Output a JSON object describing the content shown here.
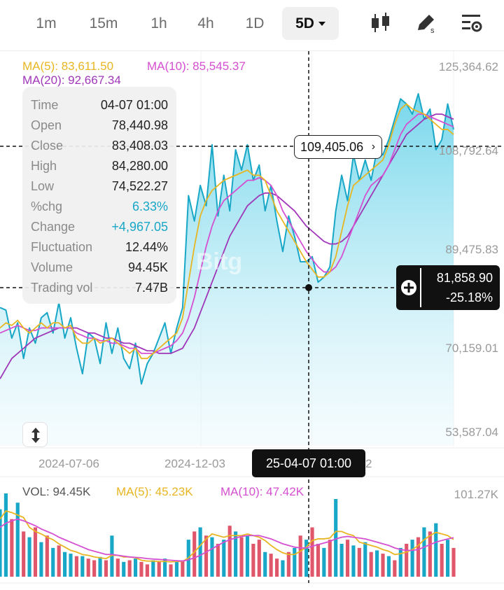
{
  "timeframes": [
    {
      "label": "1m",
      "active": false
    },
    {
      "label": "15m",
      "active": false
    },
    {
      "label": "1h",
      "active": false
    },
    {
      "label": "4h",
      "active": false
    },
    {
      "label": "1D",
      "active": false
    },
    {
      "label": "5D",
      "active": true
    }
  ],
  "toolbar_icons": [
    "candlestick-icon",
    "draw-tool-icon",
    "chart-settings-icon"
  ],
  "legend": {
    "ma5": "MA(5): 83,611.50",
    "ma10": "MA(10): 85,545.37",
    "ma20": "MA(20): 92,667.34"
  },
  "info": [
    {
      "k": "Time",
      "v": "04-07 01:00"
    },
    {
      "k": "Open",
      "v": "78,440.98"
    },
    {
      "k": "Close",
      "v": "83,408.03"
    },
    {
      "k": "High",
      "v": "84,280.00"
    },
    {
      "k": "Low",
      "v": "74,522.27"
    },
    {
      "k": "%chg",
      "v": "6.33%"
    },
    {
      "k": "Change",
      "v": "+4,967.05"
    },
    {
      "k": "Fluctuation",
      "v": "12.44%"
    },
    {
      "k": "Volume",
      "v": "94.45K"
    },
    {
      "k": "Trading vol",
      "v": "7.47B"
    }
  ],
  "price_axis": [
    "125,364.62",
    "108,792.64",
    "89,475.83",
    "70,159.01",
    "53,587.04"
  ],
  "date_axis": [
    "2024-07-06",
    "2024-12-03",
    "2"
  ],
  "last_price_pill": "109,405.06",
  "crosshair": {
    "price": "81,858.90",
    "percent": "-25.18%",
    "time": "25-04-07 01:00"
  },
  "watermark": "Bitg",
  "volume": {
    "vol": "VOL: 94.45K",
    "ma5": "MA(5): 45.23K",
    "ma10": "MA(10): 47.42K",
    "max": "101.27K"
  },
  "colors": {
    "ma5": "#e8b622",
    "ma10": "#d54fd1",
    "ma20": "#9f37b8",
    "price_line": "#18a7c7",
    "up": "#18a7c7",
    "down": "#e0566a"
  },
  "chart_data": {
    "type": "area",
    "price_range": [
      53587.04,
      125364.62
    ],
    "price": [
      78000,
      77500,
      72000,
      75000,
      68000,
      74000,
      71000,
      76000,
      77000,
      73000,
      79000,
      72000,
      76000,
      70000,
      65000,
      73000,
      72000,
      67000,
      75000,
      69000,
      74000,
      68000,
      66000,
      71000,
      63000,
      67000,
      69000,
      72000,
      75000,
      69000,
      74000,
      78000,
      100000,
      95000,
      102000,
      98000,
      110000,
      96000,
      104000,
      97000,
      109000,
      105000,
      110000,
      103000,
      106000,
      97000,
      102000,
      95000,
      89000,
      96000,
      92000,
      87000,
      87000,
      88000,
      83000,
      84000,
      86000,
      97000,
      104000,
      99000,
      108000,
      103000,
      107000,
      103000,
      109000,
      108000,
      111000,
      115000,
      119000,
      118000,
      116000,
      120000,
      115000,
      117000,
      109000,
      111000,
      118000,
      113000
    ],
    "ma5": [
      74000,
      75000,
      74500,
      75500,
      74000,
      73000,
      74000,
      75000,
      74000,
      75000,
      75000,
      74000,
      74500,
      72000,
      71000,
      71000,
      72000,
      71000,
      71500,
      72000,
      71000,
      70000,
      69000,
      70000,
      68000,
      68000,
      69000,
      70000,
      71000,
      72000,
      73000,
      76000,
      83000,
      90000,
      96000,
      99000,
      101000,
      102000,
      103000,
      103500,
      104000,
      104500,
      105000,
      104000,
      104000,
      103000,
      100000,
      97000,
      95000,
      93000,
      91000,
      89000,
      87000,
      85500,
      84000,
      84000,
      85000,
      88000,
      93000,
      98000,
      102000,
      103000,
      104000,
      105000,
      106000,
      107000,
      110000,
      114000,
      117000,
      118000,
      117000,
      116500,
      116000,
      115000,
      114000,
      113000,
      113000,
      112000
    ],
    "ma10": [
      73000,
      73500,
      74000,
      74500,
      74000,
      73500,
      73500,
      74000,
      74000,
      74000,
      74000,
      74000,
      74000,
      73000,
      72500,
      72000,
      72000,
      71500,
      71500,
      71000,
      71000,
      70500,
      70000,
      70000,
      69000,
      69000,
      69000,
      69500,
      70000,
      70500,
      71500,
      73000,
      76000,
      80000,
      85000,
      90000,
      94000,
      97000,
      99000,
      100000,
      101000,
      102000,
      103000,
      103000,
      103500,
      103000,
      102000,
      100000,
      97000,
      95000,
      93000,
      91000,
      89000,
      87500,
      86000,
      85000,
      85000,
      86000,
      88000,
      91000,
      94000,
      97000,
      100000,
      102000,
      103000,
      104000,
      106000,
      109000,
      112000,
      114000,
      115000,
      116000,
      116000,
      115500,
      115000,
      114500,
      114000,
      113500
    ],
    "ma20": [
      64000,
      66000,
      68000,
      69000,
      70000,
      71000,
      72000,
      72500,
      73000,
      73500,
      74000,
      74000,
      74000,
      74000,
      73500,
      73000,
      73000,
      72500,
      72000,
      72000,
      71500,
      71000,
      71000,
      70500,
      70000,
      69500,
      69500,
      69000,
      69000,
      69000,
      69500,
      70000,
      72000,
      74000,
      77000,
      80000,
      83000,
      86000,
      89000,
      92000,
      94000,
      96000,
      98000,
      99000,
      100000,
      100500,
      100500,
      100000,
      99000,
      98000,
      97000,
      95500,
      94000,
      93000,
      92000,
      91000,
      90500,
      90500,
      91000,
      92000,
      94000,
      96000,
      98000,
      100000,
      102000,
      104000,
      106000,
      108000,
      110000,
      112000,
      113000,
      114000,
      115000,
      115500,
      116000,
      116000,
      115500,
      115000
    ],
    "volume_max": 101270,
    "volumes": [
      82000,
      101270,
      70000,
      90000,
      55000,
      48000,
      60000,
      42000,
      50000,
      35000,
      38000,
      30000,
      28000,
      25000,
      25000,
      22000,
      20000,
      24000,
      20000,
      50000,
      22000,
      18000,
      20000,
      22000,
      18000,
      15000,
      20000,
      18000,
      22000,
      15000,
      18000,
      20000,
      45000,
      55000,
      60000,
      50000,
      48000,
      40000,
      45000,
      62000,
      55000,
      48000,
      50000,
      40000,
      45000,
      30000,
      28000,
      22000,
      20000,
      30000,
      35000,
      50000,
      45000,
      60000,
      40000,
      35000,
      45000,
      94450,
      40000,
      45000,
      38000,
      35000,
      42000,
      30000,
      32000,
      28000,
      25000,
      20000,
      35000,
      40000,
      45000,
      48000,
      60000,
      55000,
      65000,
      40000,
      45000,
      35000
    ],
    "volume_up": [
      true,
      true,
      false,
      true,
      false,
      true,
      false,
      true,
      false,
      true,
      false,
      true,
      true,
      false,
      true,
      false,
      false,
      true,
      false,
      true,
      false,
      true,
      false,
      true,
      false,
      false,
      true,
      false,
      true,
      false,
      true,
      false,
      true,
      false,
      true,
      false,
      true,
      false,
      true,
      false,
      true,
      false,
      true,
      false,
      false,
      true,
      false,
      false,
      true,
      false,
      true,
      false,
      true,
      false,
      false,
      true,
      false,
      true,
      true,
      false,
      true,
      false,
      true,
      false,
      true,
      false,
      true,
      false,
      true,
      false,
      true,
      false,
      true,
      false,
      true,
      false,
      true,
      false
    ],
    "vol_ma5": [
      70000,
      80000,
      78000,
      75000,
      72000,
      60000,
      55000,
      52000,
      48000,
      45000,
      40000,
      36000,
      32000,
      30000,
      27000,
      26000,
      24000,
      23000,
      22000,
      26000,
      26000,
      24000,
      24000,
      23000,
      20000,
      19000,
      19000,
      18500,
      18500,
      18000,
      18500,
      18500,
      23000,
      30000,
      38000,
      46000,
      52000,
      50000,
      48000,
      50000,
      50000,
      50000,
      52000,
      50000,
      48000,
      44000,
      38000,
      33000,
      29000,
      27000,
      27000,
      31000,
      36000,
      44000,
      46000,
      46000,
      47000,
      55000,
      55000,
      52000,
      50000,
      42000,
      40000,
      38000,
      36000,
      33000,
      31000,
      27000,
      28000,
      30000,
      33000,
      38000,
      45000,
      50000,
      54000,
      52000,
      50000,
      45230
    ],
    "vol_ma10": [
      60000,
      65000,
      68000,
      70000,
      68000,
      65000,
      62000,
      58000,
      55000,
      52000,
      48000,
      45000,
      42000,
      39000,
      36000,
      33000,
      31000,
      29000,
      27000,
      27000,
      26000,
      25000,
      24000,
      23500,
      23000,
      22000,
      21500,
      21000,
      20500,
      20000,
      19500,
      19000,
      20500,
      23000,
      26000,
      30000,
      34000,
      38000,
      42000,
      45000,
      47000,
      49000,
      50000,
      50000,
      50000,
      48000,
      46000,
      43000,
      40000,
      38000,
      36000,
      35000,
      35000,
      37000,
      39000,
      41000,
      43000,
      46000,
      48000,
      49000,
      48000,
      47000,
      46000,
      44000,
      42000,
      40000,
      38000,
      35000,
      33000,
      32000,
      32000,
      33000,
      36000,
      39000,
      42000,
      44000,
      46000,
      47420
    ]
  }
}
